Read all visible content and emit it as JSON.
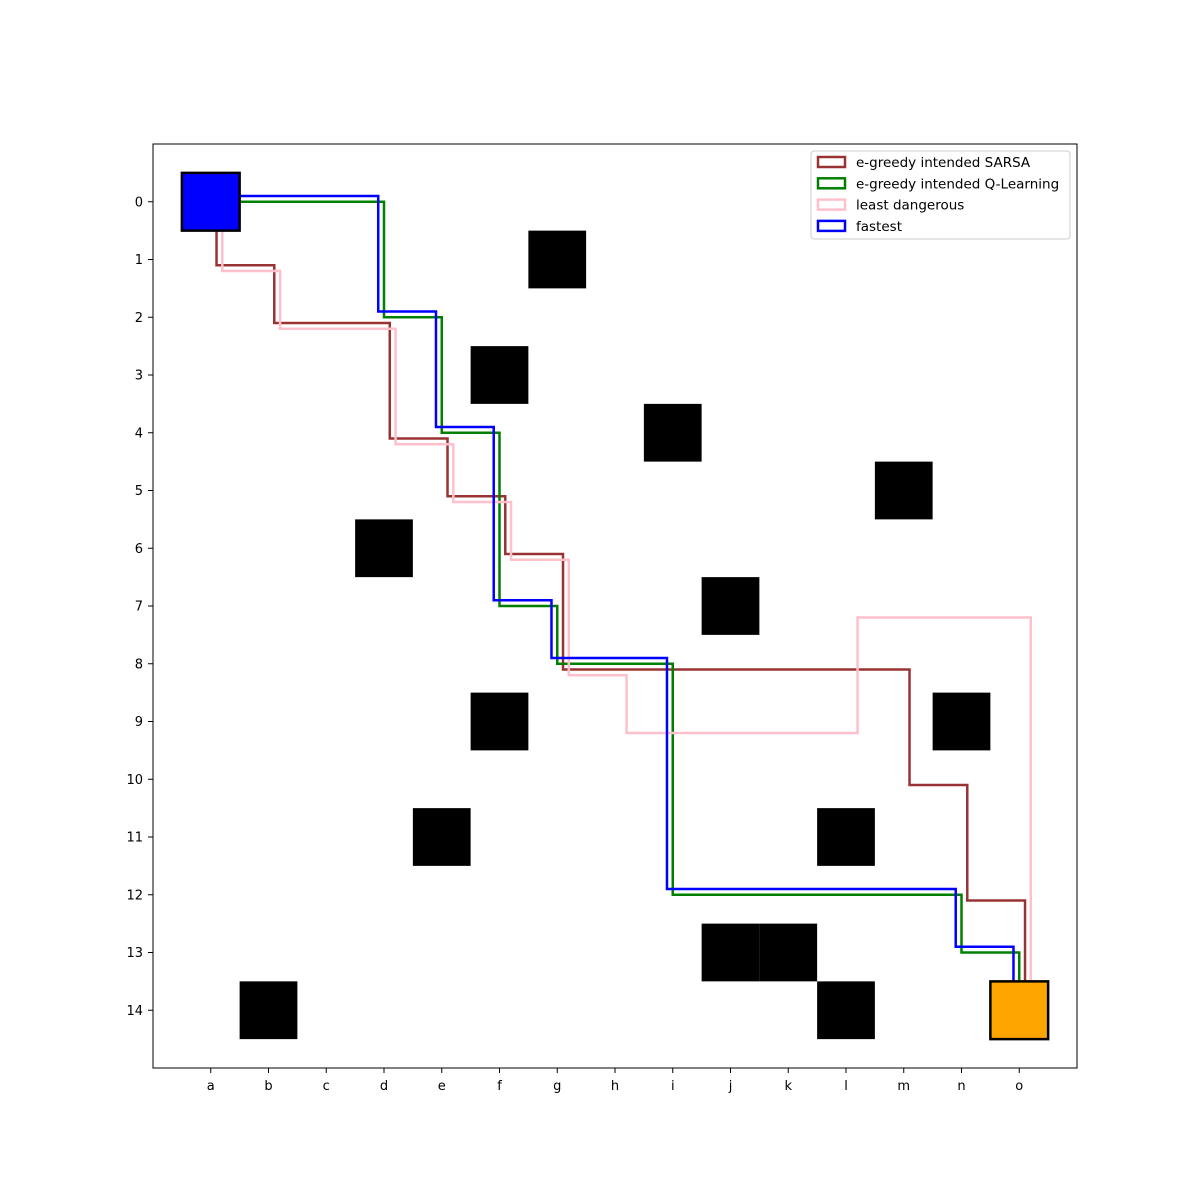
{
  "chart_data": {
    "type": "gridworld-paths",
    "title": "",
    "xlabel": "",
    "ylabel": "",
    "x_ticks": [
      "a",
      "b",
      "c",
      "d",
      "e",
      "f",
      "g",
      "h",
      "i",
      "j",
      "k",
      "l",
      "m",
      "n",
      "o"
    ],
    "y_ticks": [
      "0",
      "1",
      "2",
      "3",
      "4",
      "5",
      "6",
      "7",
      "8",
      "9",
      "10",
      "11",
      "12",
      "13",
      "14"
    ],
    "xlim": [
      -1,
      15
    ],
    "ylim": [
      15,
      -1
    ],
    "grid": false,
    "legend_position": "top-right",
    "start": {
      "col": 0,
      "row": 0,
      "color": "#0000ff"
    },
    "goal": {
      "col": 14,
      "row": 14,
      "color": "#ffa500"
    },
    "obstacles": [
      {
        "col": 6,
        "row": 1
      },
      {
        "col": 5,
        "row": 3
      },
      {
        "col": 8,
        "row": 4
      },
      {
        "col": 12,
        "row": 5
      },
      {
        "col": 3,
        "row": 6
      },
      {
        "col": 9,
        "row": 7
      },
      {
        "col": 5,
        "row": 9
      },
      {
        "col": 13,
        "row": 9
      },
      {
        "col": 4,
        "row": 11
      },
      {
        "col": 11,
        "row": 11
      },
      {
        "col": 9,
        "row": 13
      },
      {
        "col": 10,
        "row": 13
      },
      {
        "col": 1,
        "row": 14
      },
      {
        "col": 11,
        "row": 14
      }
    ],
    "series": [
      {
        "name": "e-greedy intended SARSA",
        "color": "#993333",
        "offset": 0.1,
        "points": [
          [
            0,
            0
          ],
          [
            0,
            1
          ],
          [
            1,
            1
          ],
          [
            1,
            2
          ],
          [
            3,
            2
          ],
          [
            3,
            4
          ],
          [
            4,
            4
          ],
          [
            4,
            5
          ],
          [
            5,
            5
          ],
          [
            5,
            6
          ],
          [
            6,
            6
          ],
          [
            6,
            8
          ],
          [
            12,
            8
          ],
          [
            12,
            10
          ],
          [
            13,
            10
          ],
          [
            13,
            12
          ],
          [
            14,
            12
          ],
          [
            14,
            14
          ]
        ]
      },
      {
        "name": "e-greedy intended Q-Learning",
        "color": "#008000",
        "offset": 0.0,
        "points": [
          [
            0,
            0
          ],
          [
            3,
            0
          ],
          [
            3,
            2
          ],
          [
            4,
            2
          ],
          [
            4,
            4
          ],
          [
            5,
            4
          ],
          [
            5,
            7
          ],
          [
            6,
            7
          ],
          [
            6,
            8
          ],
          [
            8,
            8
          ],
          [
            8,
            12
          ],
          [
            13,
            12
          ],
          [
            13,
            13
          ],
          [
            14,
            13
          ],
          [
            14,
            14
          ]
        ]
      },
      {
        "name": "least dangerous",
        "color": "#ffc0cb",
        "offset": 0.2,
        "points": [
          [
            0,
            0
          ],
          [
            0,
            1
          ],
          [
            1,
            1
          ],
          [
            1,
            2
          ],
          [
            3,
            2
          ],
          [
            3,
            4
          ],
          [
            4,
            4
          ],
          [
            4,
            5
          ],
          [
            5,
            5
          ],
          [
            5,
            6
          ],
          [
            6,
            6
          ],
          [
            6,
            8
          ],
          [
            7,
            8
          ],
          [
            7,
            9
          ],
          [
            11,
            9
          ],
          [
            11,
            7
          ],
          [
            14,
            7
          ],
          [
            14,
            14
          ]
        ]
      },
      {
        "name": "fastest",
        "color": "#0000ff",
        "offset": -0.1,
        "points": [
          [
            0,
            0
          ],
          [
            3,
            0
          ],
          [
            3,
            2
          ],
          [
            4,
            2
          ],
          [
            4,
            4
          ],
          [
            5,
            4
          ],
          [
            5,
            7
          ],
          [
            6,
            7
          ],
          [
            6,
            8
          ],
          [
            8,
            8
          ],
          [
            8,
            12
          ],
          [
            13,
            12
          ],
          [
            13,
            13
          ],
          [
            14,
            13
          ],
          [
            14,
            14
          ]
        ]
      }
    ]
  }
}
